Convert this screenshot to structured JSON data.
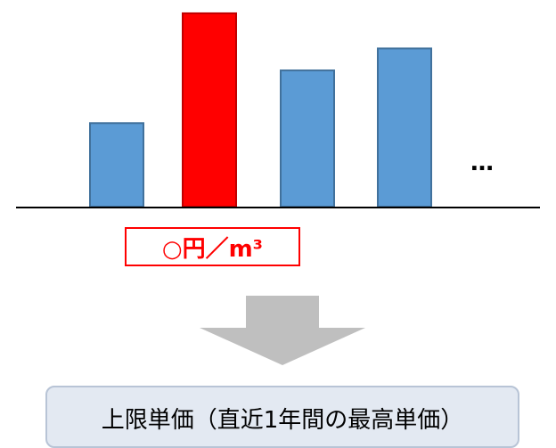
{
  "chart_data": {
    "type": "bar",
    "values": [
      95,
      220,
      155,
      180
    ],
    "ylim": [
      0,
      225
    ],
    "bar_colors": [
      "#5b9bd5",
      "#ff0000",
      "#5b9bd5",
      "#5b9bd5"
    ],
    "bar_edge_colors": [
      "#41719c",
      "#c00000",
      "#41719c",
      "#41719c"
    ]
  },
  "ellipsis": "…",
  "price_label": "○円／m³",
  "arrow_color": "#bfbfbf",
  "result_box": {
    "text": "上限単価（直近1年間の最高単価）",
    "fill": "#e3e9f2",
    "border": "#b8c4d6"
  }
}
